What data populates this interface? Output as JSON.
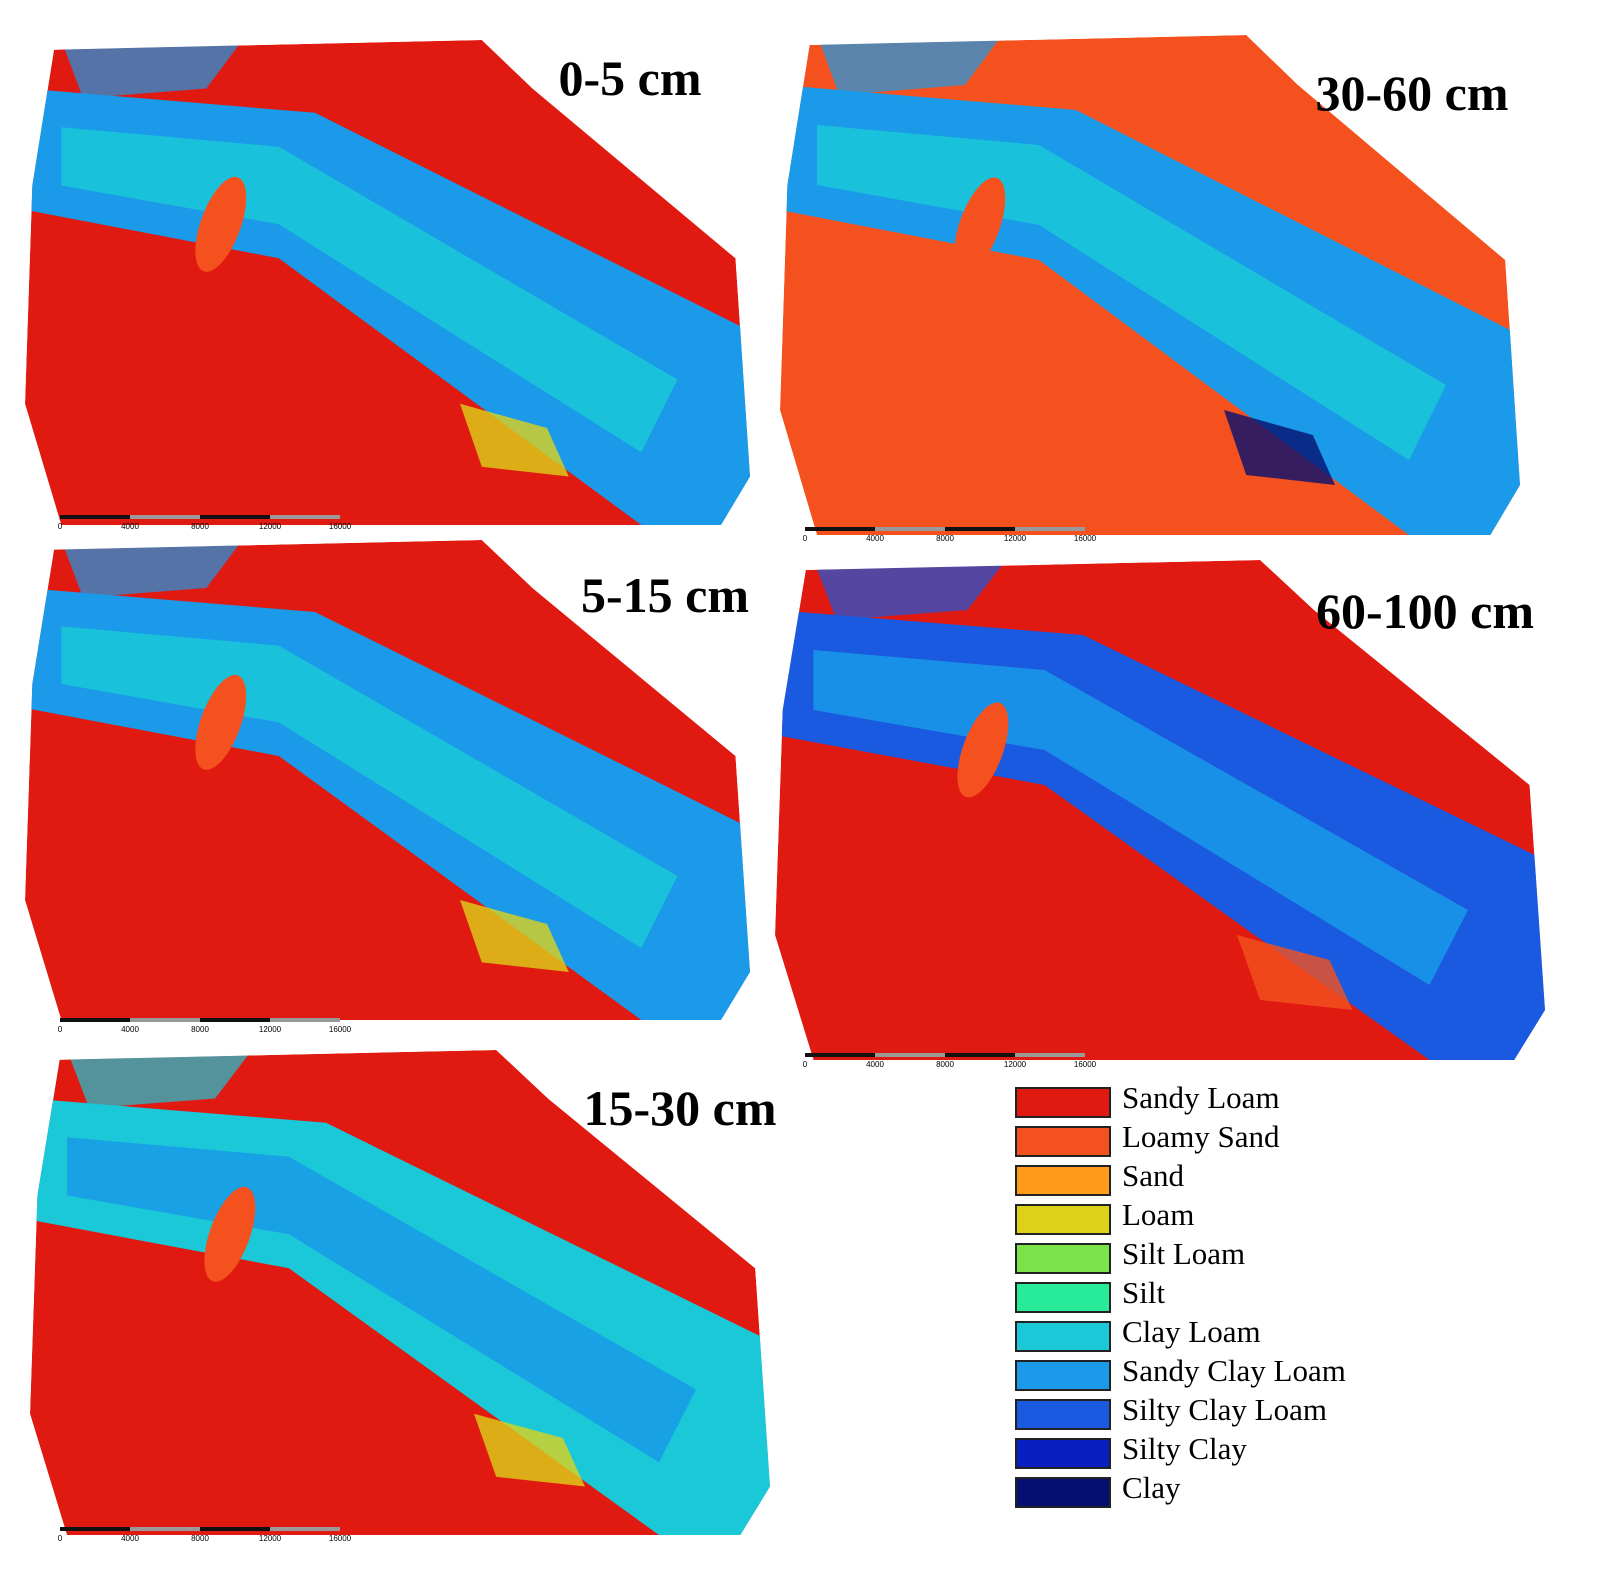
{
  "panels": [
    {
      "label": "0-5 cm",
      "scale_ticks": [
        0,
        4000,
        8000,
        12000,
        16000
      ]
    },
    {
      "label": "30-60 cm",
      "scale_ticks": [
        0,
        4000,
        8000,
        12000,
        16000
      ]
    },
    {
      "label": "5-15 cm",
      "scale_ticks": [
        0,
        4000,
        8000,
        12000,
        16000
      ]
    },
    {
      "label": "60-100 cm",
      "scale_ticks": [
        0,
        4000,
        8000,
        12000,
        16000
      ]
    },
    {
      "label": "15-30 cm",
      "scale_ticks": [
        0,
        4000,
        8000,
        12000,
        16000
      ]
    }
  ],
  "legend": [
    {
      "label": "Sandy Loam",
      "color": "#e01a10"
    },
    {
      "label": "Loamy Sand",
      "color": "#f4511e"
    },
    {
      "label": "Sand",
      "color": "#ff9a1a"
    },
    {
      "label": "Loam",
      "color": "#dcd21a"
    },
    {
      "label": "Silt Loam",
      "color": "#7be34a"
    },
    {
      "label": "Silt",
      "color": "#27eb98"
    },
    {
      "label": "Clay Loam",
      "color": "#1ac8d8"
    },
    {
      "label": "Sandy Clay Loam",
      "color": "#1a9ae8"
    },
    {
      "label": "Silty Clay Loam",
      "color": "#1a5ae0"
    },
    {
      "label": "Silty Clay",
      "color": "#0a1fc0"
    },
    {
      "label": "Clay",
      "color": "#061070"
    }
  ]
}
